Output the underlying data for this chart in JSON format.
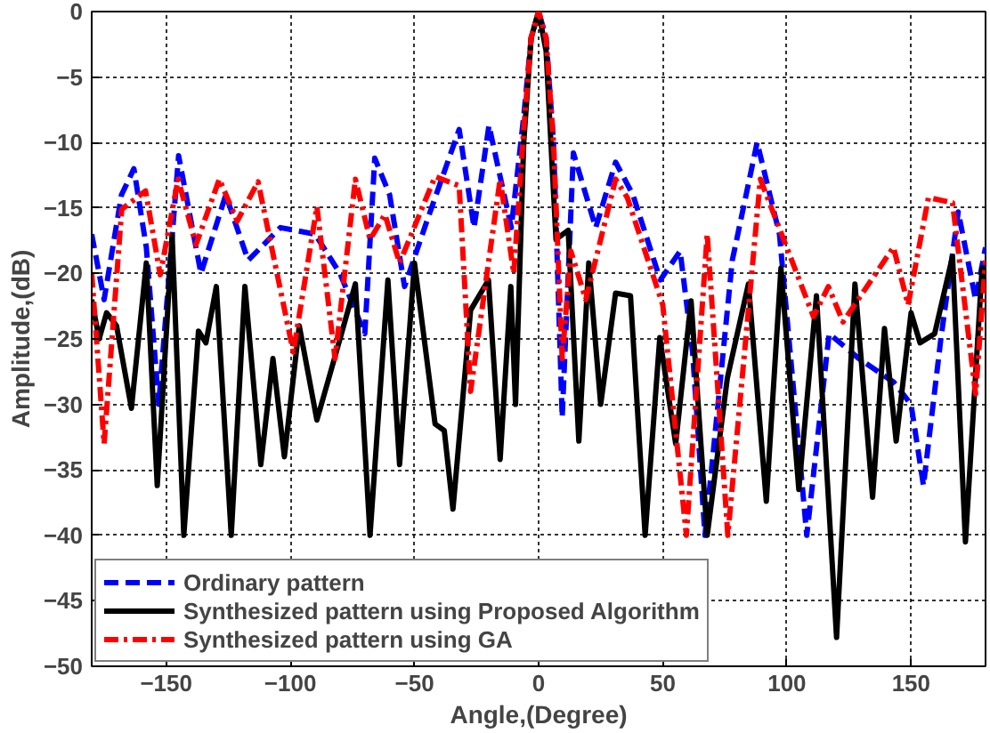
{
  "chart_data": {
    "type": "line",
    "xlabel": "Angle,(Degree)",
    "ylabel": "Amplitude,(dB)",
    "xlim": [
      -180,
      180
    ],
    "ylim": [
      -50,
      0
    ],
    "xticks": [
      -150,
      -100,
      -50,
      0,
      50,
      100,
      150
    ],
    "yticks": [
      -50,
      -45,
      -40,
      -35,
      -30,
      -25,
      -20,
      -15,
      -10,
      -5,
      0
    ],
    "grid": true,
    "legend": "bottom left",
    "series": [
      {
        "name": "Ordinary pattern",
        "color": "#0000ff",
        "line_style": "dashed",
        "x": [
          -180,
          -175,
          -168,
          -163,
          -158,
          -153,
          -145,
          -136,
          -126,
          -117,
          -104,
          -90,
          -80,
          -70,
          -66,
          -60,
          -54,
          -45,
          -32,
          -26,
          -20,
          -11,
          -6,
          -3,
          0,
          3,
          6,
          9.5,
          14,
          23,
          31,
          38,
          49,
          57,
          62,
          67,
          78,
          88,
          97,
          108,
          117,
          129,
          143,
          150,
          155,
          162,
          169,
          176,
          180
        ],
        "values": [
          -17,
          -22,
          -14,
          -12,
          -18,
          -30,
          -11,
          -20,
          -14,
          -19,
          -16.5,
          -17,
          -20,
          -24.6,
          -11.2,
          -14,
          -21,
          -16,
          -9,
          -16.5,
          -8.7,
          -16.5,
          -8,
          -2,
          0,
          -2,
          -10,
          -31,
          -10.8,
          -16.5,
          -11.5,
          -14,
          -20.5,
          -18.3,
          -26,
          -40,
          -19,
          -10,
          -17,
          -40,
          -24.6,
          -26.5,
          -28.3,
          -30,
          -36.2,
          -25,
          -15.3,
          -22,
          -18
        ]
      },
      {
        "name": "Synthesized pattern using Proposed Algorithm",
        "color": "#000000",
        "line_style": "solid",
        "x": [
          -180,
          -177,
          -174,
          -170,
          -164,
          -158,
          -153.6,
          -147.6,
          -142.9,
          -137,
          -134,
          -129.8,
          -123.8,
          -118.3,
          -111.9,
          -107,
          -102.4,
          -96.4,
          -89.3,
          -80,
          -73.8,
          -67.9,
          -60.7,
          -56,
          -50,
          -41.7,
          -38,
          -34.5,
          -27.4,
          -20.2,
          -15.5,
          -11.2,
          -9.3,
          -6,
          -3,
          0,
          3,
          7,
          11.9,
          16.2,
          20.2,
          25,
          31,
          37,
          42.9,
          48.8,
          55.2,
          61.4,
          67.9,
          76,
          84.5,
          91.7,
          97.6,
          104.8,
          111.9,
          120,
          127.4,
          134.5,
          139.3,
          144,
          150,
          153.6,
          159.5,
          166.7,
          171.9,
          178.6,
          180
        ],
        "values": [
          -22,
          -25,
          -23,
          -24,
          -30.3,
          -19.2,
          -36.2,
          -17.1,
          -40,
          -24.4,
          -25.3,
          -21,
          -40,
          -21,
          -34.6,
          -26.5,
          -34,
          -24,
          -31.2,
          -25,
          -20.8,
          -40,
          -20.5,
          -34.6,
          -19.2,
          -31.5,
          -32,
          -38,
          -22.8,
          -20.5,
          -34.2,
          -21,
          -30,
          -10,
          -2,
          0,
          -3,
          -17.4,
          -16.7,
          -32.8,
          -19.2,
          -30,
          -21.5,
          -21.7,
          -40,
          -24.9,
          -33,
          -22.1,
          -40,
          -28,
          -20.8,
          -37.4,
          -19.6,
          -36.5,
          -21.7,
          -47.8,
          -20.8,
          -37.1,
          -24.2,
          -32.8,
          -23,
          -25.3,
          -24.6,
          -18.7,
          -40.5,
          -19.6,
          -21
        ]
      },
      {
        "name": "Synthesized pattern using GA",
        "color": "#ff0000",
        "line_style": "dashdot",
        "x": [
          -180,
          -175,
          -167.9,
          -158.3,
          -152.4,
          -145.2,
          -138,
          -128.6,
          -121.4,
          -113,
          -98.8,
          -89.3,
          -82,
          -73.8,
          -67.9,
          -61.9,
          -56,
          -41.7,
          -32,
          -27.4,
          -15.5,
          -10,
          -6,
          -3,
          0,
          3,
          6,
          9.5,
          13,
          19,
          31,
          35.7,
          50,
          59.5,
          67.9,
          76.2,
          89.3,
          110.7,
          116.7,
          122.6,
          142.9,
          148.8,
          157,
          166.7,
          176,
          180
        ],
        "values": [
          -20,
          -33,
          -15.1,
          -13.7,
          -20.1,
          -12.8,
          -17.8,
          -12.8,
          -16,
          -13,
          -26,
          -14.9,
          -26.5,
          -12.8,
          -17.4,
          -15.5,
          -19.2,
          -12.6,
          -13.3,
          -29,
          -12.8,
          -20,
          -9,
          -2,
          0,
          -2,
          -10,
          -26.5,
          -18.3,
          -22,
          -12.8,
          -14.2,
          -22.4,
          -40,
          -17,
          -40,
          -12.8,
          -23.3,
          -21,
          -23.7,
          -18,
          -22.4,
          -14.2,
          -14.6,
          -29.2,
          -19
        ]
      }
    ]
  }
}
